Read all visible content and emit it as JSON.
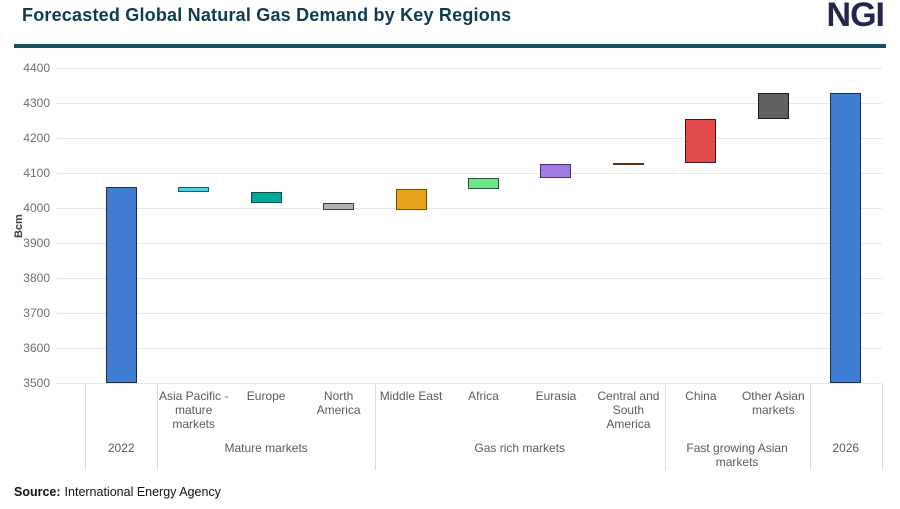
{
  "header": {
    "logo_text": "NGI"
  },
  "source": {
    "label": "Source:",
    "text": "International Energy Agency"
  },
  "colors": {
    "title": "#0E3A52",
    "logo": "#23264D",
    "accent_rule": "#175163",
    "grid": "#E7E7E7",
    "axis_text": "#6E6E6E",
    "label_text": "#5B5B5B",
    "separator": "#DADADA"
  },
  "chart_data": {
    "type": "bar",
    "subtype": "waterfall",
    "title": "Forecasted Global Natural Gas Demand by Key Regions",
    "xlabel": "",
    "ylabel": "Bcm",
    "ylim": [
      3500,
      4400
    ],
    "ytick_step": 100,
    "grid": true,
    "legend": false,
    "bars": [
      {
        "label": "2022",
        "kind": "total",
        "from": 3500,
        "to": 4060,
        "value": 4060,
        "fill": "#3E7DD2",
        "stroke": "#1B2B4D"
      },
      {
        "label": "Asia Pacific - mature markets",
        "kind": "delta",
        "from": 4060,
        "to": 4045,
        "value": -15,
        "fill": "#4DD3E6",
        "stroke": "#10606C"
      },
      {
        "label": "Europe",
        "kind": "delta",
        "from": 4045,
        "to": 4015,
        "value": -30,
        "fill": "#00A89B",
        "stroke": "#00534A"
      },
      {
        "label": "North America",
        "kind": "delta",
        "from": 4015,
        "to": 3995,
        "value": -20,
        "fill": "#B3B3B3",
        "stroke": "#3F3F3F"
      },
      {
        "label": "Middle East",
        "kind": "delta",
        "from": 3995,
        "to": 4055,
        "value": 60,
        "fill": "#E9A31C",
        "stroke": "#6B5200"
      },
      {
        "label": "Africa",
        "kind": "delta",
        "from": 4055,
        "to": 4085,
        "value": 30,
        "fill": "#6DE58E",
        "stroke": "#1F5C33"
      },
      {
        "label": "Eurasia",
        "kind": "delta",
        "from": 4085,
        "to": 4125,
        "value": 40,
        "fill": "#A37CE1",
        "stroke": "#4B2D7F"
      },
      {
        "label": "Central and South America",
        "kind": "delta",
        "from": 4125,
        "to": 4130,
        "value": 5,
        "fill": "#9A5B2D",
        "stroke": "#5E3317"
      },
      {
        "label": "China",
        "kind": "delta",
        "from": 4130,
        "to": 4255,
        "value": 125,
        "fill": "#E2494A",
        "stroke": "#3D1A1A"
      },
      {
        "label": "Other Asian markets",
        "kind": "delta",
        "from": 4255,
        "to": 4330,
        "value": 75,
        "fill": "#616161",
        "stroke": "#1A1A1A"
      },
      {
        "label": "2026",
        "kind": "total",
        "from": 3500,
        "to": 4330,
        "value": 4330,
        "fill": "#3E7DD2",
        "stroke": "#1B2B4D"
      }
    ],
    "groups": [
      {
        "label": "2022",
        "span": [
          0,
          0
        ]
      },
      {
        "label": "Mature markets",
        "span": [
          1,
          3
        ]
      },
      {
        "label": "Gas rich markets",
        "span": [
          4,
          7
        ]
      },
      {
        "label": "Fast growing Asian markets",
        "span": [
          8,
          9
        ]
      },
      {
        "label": "2026",
        "span": [
          10,
          10
        ]
      }
    ]
  }
}
